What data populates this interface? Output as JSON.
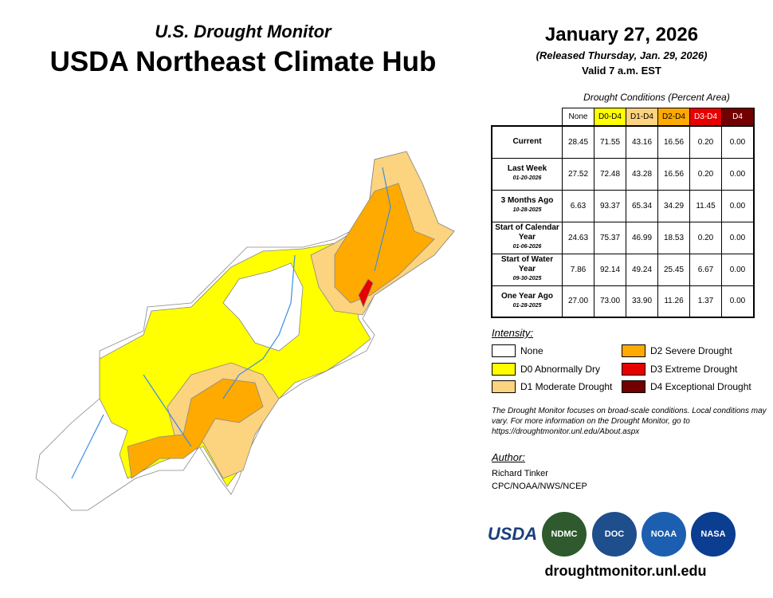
{
  "header": {
    "subtitle": "U.S. Drought Monitor",
    "title": "USDA Northeast Climate Hub",
    "date": "January 27, 2026",
    "released": "(Released Thursday, Jan. 29, 2026)",
    "valid": "Valid 7 a.m. EST"
  },
  "table": {
    "caption": "Drought Conditions (Percent Area)",
    "columns": [
      {
        "label": "None",
        "color": "#ffffff",
        "text": "#000"
      },
      {
        "label": "D0-D4",
        "color": "#ffff00",
        "text": "#000"
      },
      {
        "label": "D1-D4",
        "color": "#fcd37f",
        "text": "#000"
      },
      {
        "label": "D2-D4",
        "color": "#ffaa00",
        "text": "#000"
      },
      {
        "label": "D3-D4",
        "color": "#e60000",
        "text": "#fff"
      },
      {
        "label": "D4",
        "color": "#730000",
        "text": "#fff"
      }
    ],
    "rows": [
      {
        "label": "Current",
        "date": "",
        "values": [
          "28.45",
          "71.55",
          "43.16",
          "16.56",
          "0.20",
          "0.00"
        ]
      },
      {
        "label": "Last Week",
        "date": "01-20-2026",
        "values": [
          "27.52",
          "72.48",
          "43.28",
          "16.56",
          "0.20",
          "0.00"
        ]
      },
      {
        "label": "3 Months Ago",
        "date": "10-28-2025",
        "values": [
          "6.63",
          "93.37",
          "65.34",
          "34.29",
          "11.45",
          "0.00"
        ]
      },
      {
        "label": "Start of Calendar Year",
        "date": "01-06-2026",
        "values": [
          "24.63",
          "75.37",
          "46.99",
          "18.53",
          "0.20",
          "0.00"
        ]
      },
      {
        "label": "Start of Water Year",
        "date": "09-30-2025",
        "values": [
          "7.86",
          "92.14",
          "49.24",
          "25.45",
          "6.67",
          "0.00"
        ]
      },
      {
        "label": "One Year Ago",
        "date": "01-28-2025",
        "values": [
          "27.00",
          "73.00",
          "33.90",
          "11.26",
          "1.37",
          "0.00"
        ]
      }
    ]
  },
  "legend": {
    "title": "Intensity:",
    "items": [
      {
        "label": "None",
        "color": "#ffffff"
      },
      {
        "label": "D0 Abnormally Dry",
        "color": "#ffff00"
      },
      {
        "label": "D1 Moderate Drought",
        "color": "#fcd37f"
      },
      {
        "label": "D2 Severe Drought",
        "color": "#ffaa00"
      },
      {
        "label": "D3 Extreme Drought",
        "color": "#e60000"
      },
      {
        "label": "D4 Exceptional Drought",
        "color": "#730000"
      }
    ]
  },
  "note": "The Drought Monitor focuses on broad-scale conditions. Local conditions may vary. For more information on the Drought Monitor, go to https://droughtmonitor.unl.edu/About.aspx",
  "author": {
    "title": "Author:",
    "name": "Richard Tinker",
    "org": "CPC/NOAA/NWS/NCEP"
  },
  "logos": [
    "USDA",
    "NDMC",
    "DOC",
    "NOAA",
    "NASA"
  ],
  "url": "droughtmonitor.unl.edu"
}
